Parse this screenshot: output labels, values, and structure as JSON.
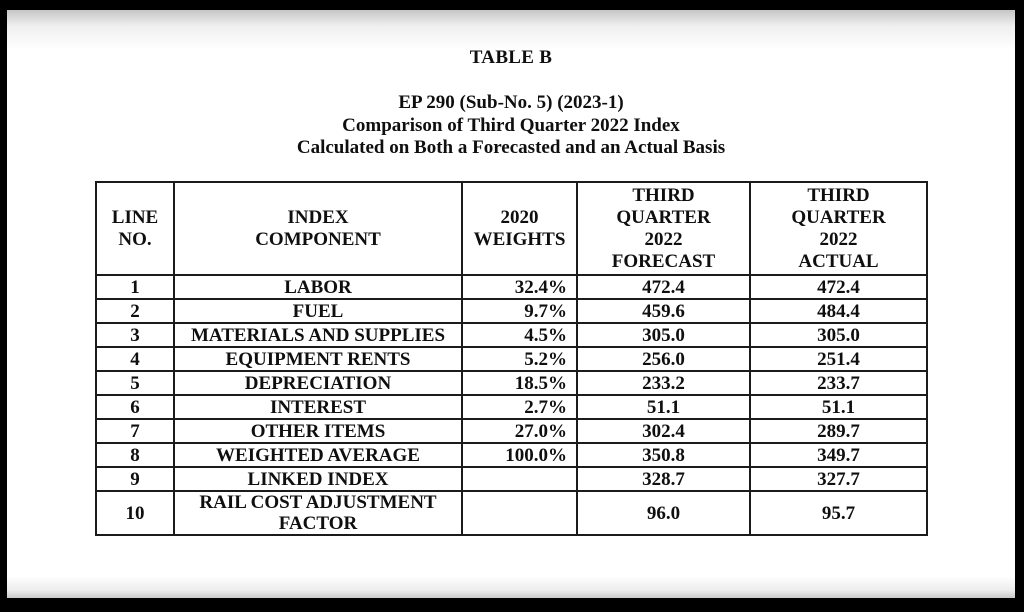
{
  "document": {
    "table_label": "TABLE B",
    "title_line_1": "EP 290 (Sub-No. 5) (2023-1)",
    "title_line_2": "Comparison of Third Quarter 2022 Index",
    "title_line_3": "Calculated on Both a Forecasted and an Actual Basis"
  },
  "table": {
    "headers": {
      "line_no": "LINE\nNO.",
      "component": "INDEX\nCOMPONENT",
      "weights": "2020\nWEIGHTS",
      "forecast": "THIRD\nQUARTER\n2022\nFORECAST",
      "actual": "THIRD\nQUARTER\n2022\nACTUAL"
    },
    "rows": [
      {
        "line_no": "1",
        "component": "LABOR",
        "weight": "32.4%",
        "forecast": "472.4",
        "actual": "472.4"
      },
      {
        "line_no": "2",
        "component": "FUEL",
        "weight": "9.7%",
        "forecast": "459.6",
        "actual": "484.4"
      },
      {
        "line_no": "3",
        "component": "MATERIALS AND SUPPLIES",
        "weight": "4.5%",
        "forecast": "305.0",
        "actual": "305.0"
      },
      {
        "line_no": "4",
        "component": "EQUIPMENT RENTS",
        "weight": "5.2%",
        "forecast": "256.0",
        "actual": "251.4"
      },
      {
        "line_no": "5",
        "component": "DEPRECIATION",
        "weight": "18.5%",
        "forecast": "233.2",
        "actual": "233.7"
      },
      {
        "line_no": "6",
        "component": "INTEREST",
        "weight": "2.7%",
        "forecast": "51.1",
        "actual": "51.1"
      },
      {
        "line_no": "7",
        "component": "OTHER ITEMS",
        "weight": "27.0%",
        "forecast": "302.4",
        "actual": "289.7"
      },
      {
        "line_no": "8",
        "component": "WEIGHTED AVERAGE",
        "weight": "100.0%",
        "forecast": "350.8",
        "actual": "349.7"
      },
      {
        "line_no": "9",
        "component": "LINKED INDEX",
        "weight": "",
        "forecast": "328.7",
        "actual": "327.7"
      },
      {
        "line_no": "10",
        "component": "RAIL COST ADJUSTMENT FACTOR",
        "weight": "",
        "forecast": "96.0",
        "actual": "95.7"
      }
    ]
  },
  "colors": {
    "frame": "#000000",
    "page": "#ffffff",
    "text": "#0f0f0f",
    "table_border": "#1b1b1b"
  }
}
